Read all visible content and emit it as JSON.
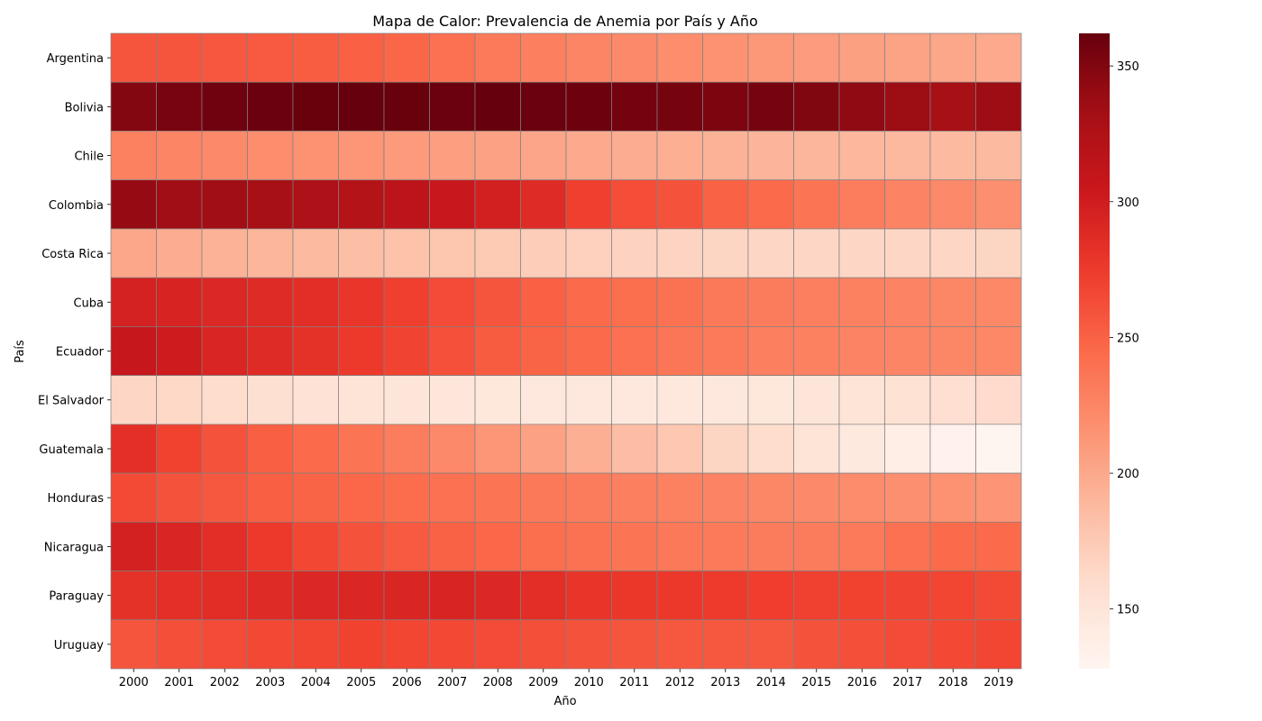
{
  "chart_data": {
    "type": "heatmap",
    "title": "Mapa de Calor: Prevalencia de Anemia por País y Año",
    "xlabel": "Año",
    "ylabel": "País",
    "x": [
      "2000",
      "2001",
      "2002",
      "2003",
      "2004",
      "2005",
      "2006",
      "2007",
      "2008",
      "2009",
      "2010",
      "2011",
      "2012",
      "2013",
      "2014",
      "2015",
      "2016",
      "2017",
      "2018",
      "2019"
    ],
    "y": [
      "Argentina",
      "Bolivia",
      "Chile",
      "Colombia",
      "Costa Rica",
      "Cuba",
      "Ecuador",
      "El Salvador",
      "Guatemala",
      "Honduras",
      "Nicaragua",
      "Paraguay",
      "Uruguay"
    ],
    "values": [
      [
        258,
        258,
        257,
        255,
        253,
        251,
        247,
        240,
        233,
        229,
        225,
        222,
        219,
        216,
        212,
        209,
        206,
        204,
        201,
        199
      ],
      [
        349,
        354,
        358,
        360,
        361,
        362,
        361,
        360,
        362,
        360,
        359,
        356,
        355,
        352,
        355,
        350,
        343,
        337,
        331,
        336
      ],
      [
        228,
        225,
        222,
        219,
        216,
        213,
        210,
        207,
        205,
        202,
        199,
        197,
        195,
        193,
        191,
        190,
        189,
        188,
        187,
        187
      ],
      [
        340,
        334,
        334,
        331,
        326,
        321,
        315,
        305,
        298,
        288,
        272,
        263,
        260,
        250,
        245,
        237,
        231,
        227,
        222,
        218
      ],
      [
        201,
        197,
        193,
        190,
        187,
        184,
        181,
        178,
        175,
        172,
        169,
        168,
        167,
        166,
        165,
        165,
        165,
        165,
        165,
        166
      ],
      [
        296,
        294,
        290,
        288,
        285,
        279,
        272,
        264,
        258,
        251,
        245,
        242,
        239,
        235,
        232,
        230,
        228,
        226,
        224,
        223
      ],
      [
        308,
        301,
        292,
        288,
        282,
        276,
        269,
        261,
        254,
        249,
        245,
        240,
        236,
        233,
        230,
        228,
        227,
        225,
        224,
        223
      ],
      [
        165,
        163,
        160,
        157,
        154,
        152,
        150,
        149,
        148,
        147,
        147,
        146,
        146,
        147,
        148,
        150,
        152,
        155,
        158,
        161
      ],
      [
        284,
        270,
        260,
        252,
        245,
        238,
        231,
        222,
        213,
        205,
        195,
        185,
        177,
        166,
        160,
        152,
        145,
        138,
        133,
        128
      ],
      [
        265,
        260,
        256,
        252,
        249,
        246,
        243,
        240,
        237,
        234,
        232,
        230,
        228,
        226,
        224,
        222,
        220,
        218,
        216,
        214
      ],
      [
        297,
        292,
        285,
        276,
        267,
        260,
        255,
        250,
        246,
        242,
        239,
        237,
        235,
        233,
        232,
        232,
        233,
        240,
        244,
        244
      ],
      [
        282,
        284,
        286,
        288,
        290,
        291,
        292,
        293,
        290,
        285,
        280,
        278,
        277,
        275,
        273,
        271,
        270,
        269,
        268,
        265
      ],
      [
        258,
        262,
        264,
        266,
        268,
        270,
        268,
        266,
        264,
        262,
        260,
        258,
        256,
        256,
        256,
        260,
        262,
        264,
        266,
        268
      ]
    ],
    "colorbar": {
      "min": 128,
      "max": 362,
      "ticks": [
        150,
        200,
        250,
        300,
        350
      ],
      "colormap": "Reds"
    },
    "grid_line_color": "#808080"
  }
}
